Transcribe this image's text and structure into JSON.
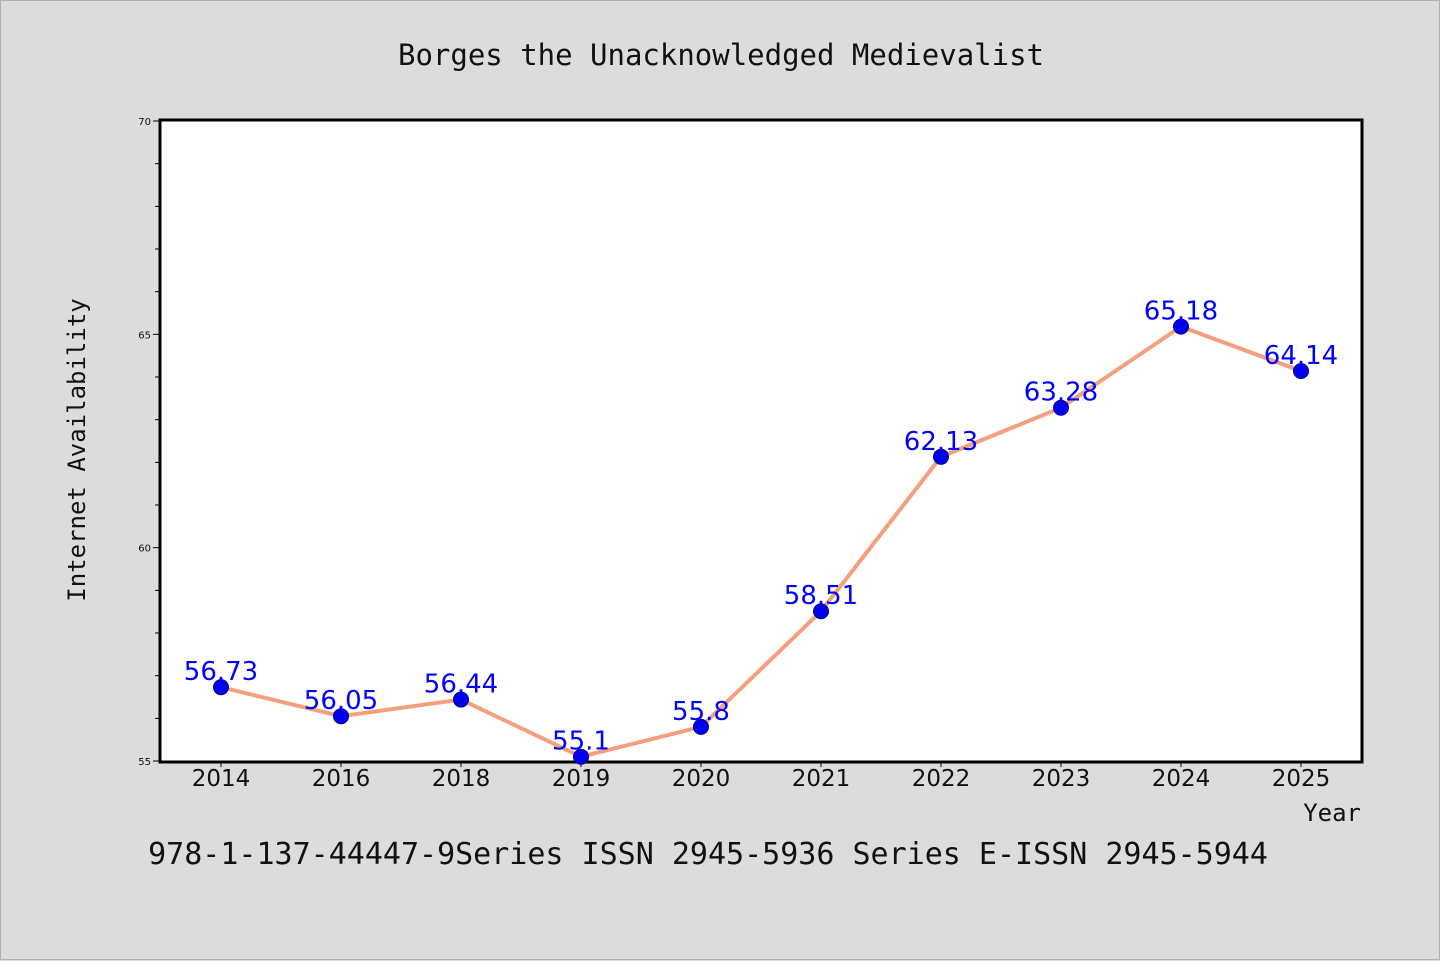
{
  "colors": {
    "background": "#dcdcdc",
    "plot_background": "#ffffff",
    "line": "#f4a07e",
    "marker": "#0000ee",
    "data_label": "#0000ff"
  },
  "footer": {
    "text": "978-1-137-44447-9Series ISSN 2945-5936 Series E-ISSN 2945-5944"
  },
  "chart_data": {
    "type": "line",
    "title": "Borges the Unacknowledged Medievalist",
    "xlabel": "Year",
    "ylabel": "Internet Availability",
    "categories": [
      "2014",
      "2016",
      "2018",
      "2019",
      "2020",
      "2021",
      "2022",
      "2023",
      "2024",
      "2025"
    ],
    "series": [
      {
        "values": [
          56.73,
          56.05,
          56.44,
          55.1,
          55.8,
          58.51,
          62.13,
          63.28,
          65.18,
          64.14
        ],
        "data_labels": [
          "56.73",
          "56.05",
          "56.44",
          "55.1",
          "55.8",
          "58.51",
          "62.13",
          "63.28",
          "65.18",
          "64.14"
        ]
      }
    ],
    "ylim": [
      55,
      70
    ],
    "yticks": [
      "55",
      "60",
      "65",
      "70"
    ],
    "grid": false,
    "legend": "none"
  }
}
